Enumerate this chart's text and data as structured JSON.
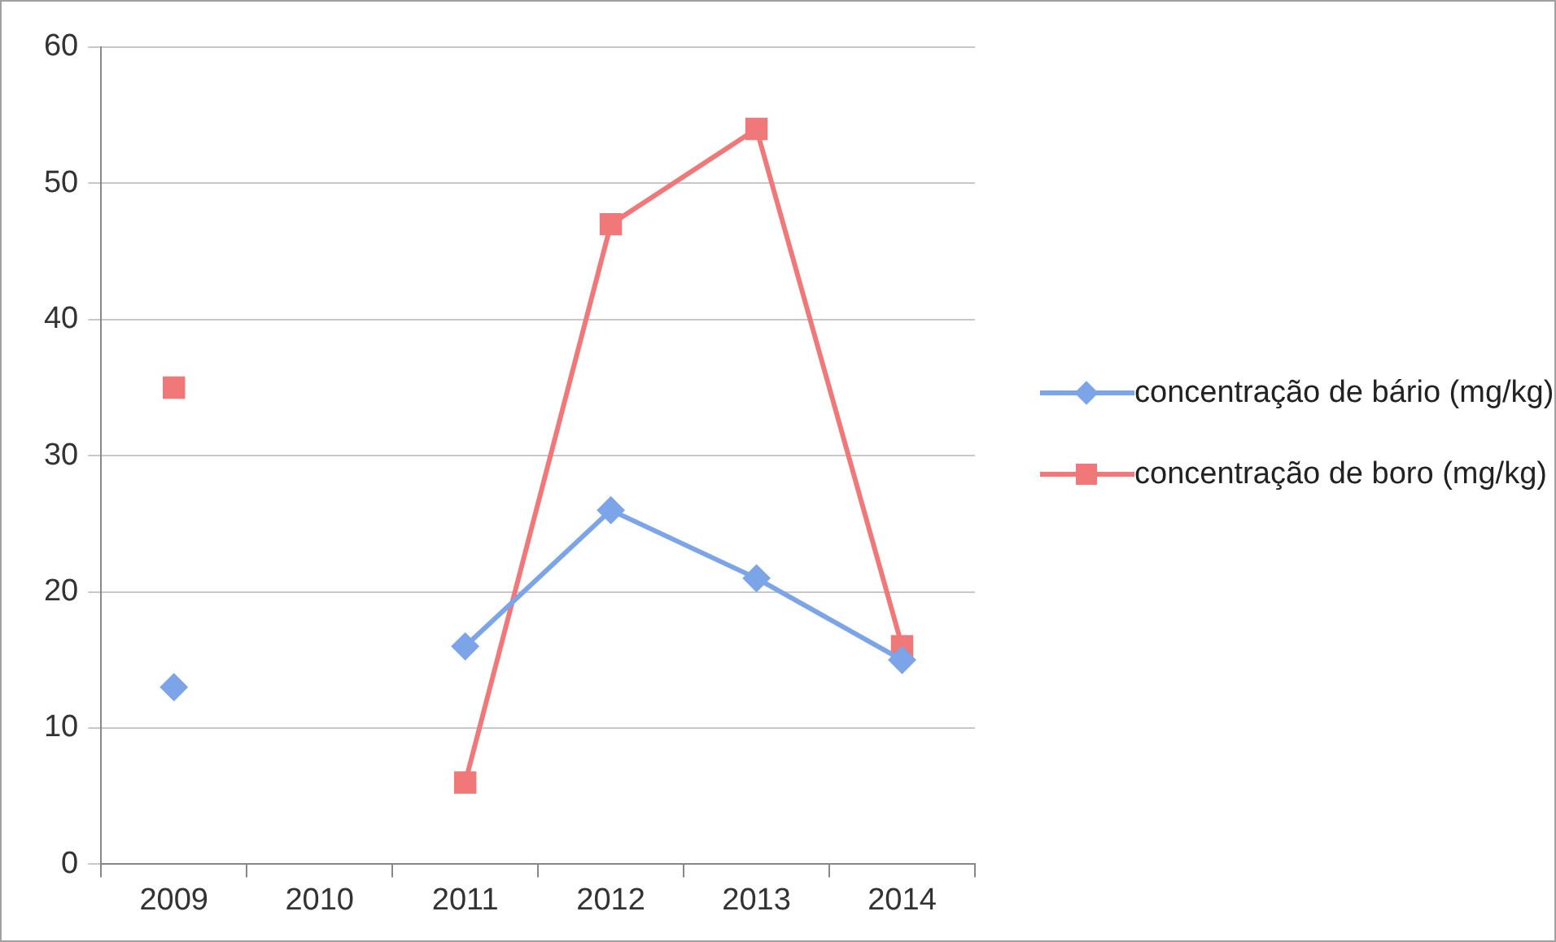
{
  "chart_data": {
    "type": "line",
    "categories": [
      "2009",
      "2010",
      "2011",
      "2012",
      "2013",
      "2014"
    ],
    "series": [
      {
        "name": "concentração de bário (mg/kg)",
        "color": "#7ca4e8",
        "marker": "diamond",
        "values": [
          13,
          null,
          16,
          26,
          21,
          15
        ]
      },
      {
        "name": "concentração de boro (mg/kg)",
        "color": "#f07878",
        "marker": "square",
        "values": [
          35,
          null,
          6,
          47,
          54,
          16
        ]
      }
    ],
    "ylim": [
      0,
      60
    ],
    "yticks": [
      0,
      10,
      20,
      30,
      40,
      50,
      60
    ],
    "grid": "y",
    "legend": "right",
    "line_style": "solid"
  }
}
